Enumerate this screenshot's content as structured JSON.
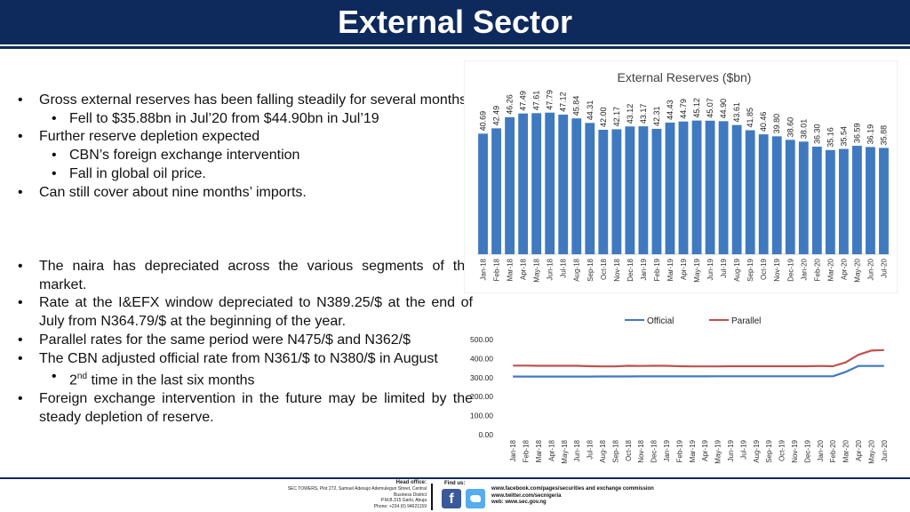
{
  "page_title": "External Sector",
  "left_text": {
    "section1": [
      {
        "level": 1,
        "text": "Gross external reserves has been falling steadily for several months"
      },
      {
        "level": 2,
        "text": "Fell to $35.88bn in Jul’20 from $44.90bn in Jul’19"
      },
      {
        "level": 1,
        "text": "Further reserve depletion expected"
      },
      {
        "level": 2,
        "text": "CBN’s foreign exchange intervention"
      },
      {
        "level": 2,
        "text": "Fall in global oil price."
      },
      {
        "level": 1,
        "text": "Can still cover about nine months’ imports."
      }
    ],
    "section2": [
      {
        "level": 1,
        "text": "The naira has depreciated across the various segments of the market."
      },
      {
        "level": 1,
        "text": "Rate at the I&EFX window depreciated to N389.25/$ at the end of July from N364.79/$ at the beginning of the year."
      },
      {
        "level": 1,
        "text": "Parallel rates for the same period were N475/$ and N362/$"
      },
      {
        "level": 1,
        "text": "The CBN adjusted official rate from N361/$ to N380/$ in August"
      },
      {
        "level": 2,
        "text_pre": "2",
        "text_sup": "nd",
        "text_post": " time in the last six months"
      },
      {
        "level": 1,
        "text": "Foreign exchange intervention in the future may be limited by the steady depletion of reserve."
      }
    ]
  },
  "chart_data": [
    {
      "type": "bar",
      "title": "External Reserves ($bn)",
      "categories": [
        "Jan-18",
        "Feb-18",
        "Mar-18",
        "Apr-18",
        "May-18",
        "Jun-18",
        "Jul-18",
        "Aug-18",
        "Sep-18",
        "Oct-18",
        "Nov-18",
        "Dec-18",
        "Jan-19",
        "Feb-19",
        "Mar-19",
        "Apr-19",
        "May-19",
        "Jun-19",
        "Jul-19",
        "Aug-19",
        "Sep-19",
        "Oct-19",
        "Nov-19",
        "Dec-19",
        "Jan-20",
        "Feb-20",
        "Mar-20",
        "Apr-20",
        "May-20",
        "Jun-20",
        "Jul-20"
      ],
      "values": [
        40.69,
        42.49,
        46.26,
        47.49,
        47.61,
        47.79,
        47.12,
        45.84,
        44.31,
        42.0,
        42.17,
        43.12,
        43.17,
        42.31,
        44.43,
        44.79,
        45.12,
        45.07,
        44.9,
        43.61,
        41.85,
        40.46,
        39.8,
        38.6,
        38.01,
        36.3,
        35.16,
        35.54,
        36.59,
        36.19,
        35.88
      ],
      "bar_color": "#3f79c0",
      "grid": false
    },
    {
      "type": "line",
      "title": "",
      "legend_position": "top",
      "categories": [
        "Jan-18",
        "Feb-18",
        "Mar-18",
        "Apr-18",
        "May-18",
        "Jun-18",
        "Jul-18",
        "Aug-18",
        "Sep-18",
        "Oct-18",
        "Nov-18",
        "Dec-18",
        "Jan-19",
        "Feb-19",
        "Mar-19",
        "Apr-19",
        "May-19",
        "Jun-19",
        "Jul-19",
        "Aug-19",
        "Sep-19",
        "Oct-19",
        "Nov-19",
        "Dec-19",
        "Jan-20",
        "Feb-20",
        "Mar-20",
        "Apr-20",
        "May-20",
        "Jun-20"
      ],
      "y_tick_labels": [
        "0.00",
        "100.00",
        "200.00",
        "300.00",
        "400.00",
        "500.00"
      ],
      "ylim": [
        0,
        500
      ],
      "series": [
        {
          "name": "Official",
          "color": "#3f79c0",
          "values": [
            305.8,
            305.8,
            305.8,
            305.8,
            305.8,
            305.8,
            305.8,
            306,
            306,
            306,
            306.5,
            306.5,
            306.5,
            306.5,
            306.5,
            306.5,
            306.8,
            306.8,
            306.8,
            306.8,
            306.8,
            306.8,
            306.8,
            306.8,
            306.8,
            306.8,
            330,
            361,
            361,
            361
          ]
        },
        {
          "name": "Parallel",
          "color": "#c0504d",
          "values": [
            363,
            363,
            362,
            362,
            362,
            362,
            360,
            359,
            359,
            362,
            361,
            362,
            362,
            360,
            359,
            359,
            359,
            360,
            360,
            360,
            360,
            360,
            360,
            360,
            361,
            360,
            380,
            420,
            442,
            445
          ]
        }
      ]
    }
  ],
  "footer": {
    "head_office_label": "Head office:",
    "address_lines": [
      "SEC TOWERS, Plot 272, Samuel Adesujo Ademulegun Street, Central",
      "Business District",
      "P.M.B.315 Garki, Abuja",
      "Phone: +234 (0) 94621159"
    ],
    "find_us_label": "Find us:",
    "facebook_glyph": "f",
    "links": [
      "www.facebook.com/pages/securities and exchange commission",
      "www.twitter.com/secnigeria",
      "web: www.sec.gov.ng"
    ]
  }
}
